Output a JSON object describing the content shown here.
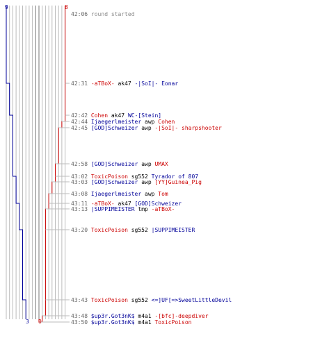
{
  "colors": {
    "red": "#cc0000",
    "blue": "#000099",
    "grid": "#bbbbbb",
    "grid_dark": "#777777",
    "time": "#666666",
    "weapon": "#000000"
  },
  "scores": {
    "blue_start": "9",
    "red_start": "8",
    "blue_end": "3",
    "red_end": "0"
  },
  "events": [
    {
      "time": "42:06",
      "type": "message",
      "text": "round started"
    },
    {
      "time": "42:31",
      "killer": "-aTBoX-",
      "killer_team": "red",
      "weapon": "ak47",
      "victim": "-|SoI|- Eonar",
      "victim_team": "blue"
    },
    {
      "time": "42:42",
      "killer": "Cohen",
      "killer_team": "red",
      "weapon": "ak47",
      "victim": "WC-[Stein]",
      "victim_team": "blue"
    },
    {
      "time": "42:44",
      "killer": "Ijaegerlmeister",
      "killer_team": "blue",
      "weapon": "awp",
      "victim": "Cohen",
      "victim_team": "red"
    },
    {
      "time": "42:45",
      "killer": "[GOD]Schweizer",
      "killer_team": "blue",
      "weapon": "awp",
      "victim": "-|SoI|- sharpshooter",
      "victim_team": "red"
    },
    {
      "time": "42:58",
      "killer": "[GOD]Schweizer",
      "killer_team": "blue",
      "weapon": "awp",
      "victim": "UMAX",
      "victim_team": "red"
    },
    {
      "time": "43:02",
      "killer": "ToxicPoison",
      "killer_team": "red",
      "weapon": "sg552",
      "victim": "Tyrador of 807",
      "victim_team": "blue"
    },
    {
      "time": "43:03",
      "killer": "[GOD]Schweizer",
      "killer_team": "blue",
      "weapon": "awp",
      "victim": "[YY]Guinea_Pig",
      "victim_team": "red"
    },
    {
      "time": "43:08",
      "killer": "Ijaegerlmeister",
      "killer_team": "blue",
      "weapon": "awp",
      "victim": "Tom",
      "victim_team": "red"
    },
    {
      "time": "43:11",
      "killer": "-aTBoX-",
      "killer_team": "red",
      "weapon": "ak47",
      "victim": "[GOD]Schweizer",
      "victim_team": "blue"
    },
    {
      "time": "43:13",
      "killer": "|SUPPIMEISTER",
      "killer_team": "blue",
      "weapon": "tmp",
      "victim": "-aTBoX-",
      "victim_team": "red"
    },
    {
      "time": "43:20",
      "killer": "ToxicPoison",
      "killer_team": "red",
      "weapon": "sg552",
      "victim": "|SUPPIMEISTER",
      "victim_team": "blue"
    },
    {
      "time": "43:43",
      "killer": "ToxicPoison",
      "killer_team": "red",
      "weapon": "sg552",
      "victim": "<=]UF[=>SweetLittleDevil",
      "victim_team": "blue"
    },
    {
      "time": "43:48",
      "killer": "$up3r.Got3nK$",
      "killer_team": "blue",
      "weapon": "m4a1",
      "victim": "-[bfc]-deepdiver",
      "victim_team": "red"
    },
    {
      "time": "43:50",
      "killer": "$up3r.Got3nK$",
      "killer_team": "blue",
      "weapon": "m4a1",
      "victim": "ToxicPoison",
      "victim_team": "red"
    }
  ]
}
